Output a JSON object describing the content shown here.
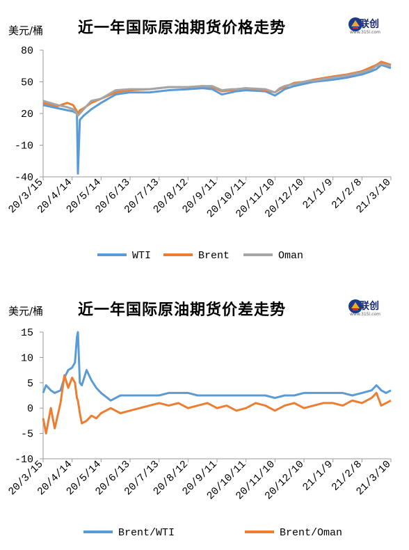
{
  "logo": {
    "name": "金联创",
    "sub": "www.315i.com"
  },
  "colors": {
    "wti": "#5b9bd5",
    "brent": "#ed7d31",
    "oman": "#a5a5a5",
    "axis": "#999999"
  },
  "chart_data": [
    {
      "type": "line",
      "title": "近一年国际原油期货价格走势",
      "unit": "美元/桶",
      "ylim": [
        -40,
        80
      ],
      "yticks": [
        "80",
        "50",
        "20",
        "-10",
        "-40"
      ],
      "ytick_values": [
        80,
        50,
        20,
        -10,
        -40
      ],
      "xtick_labels": [
        "20/3/15",
        "20/4/14",
        "20/5/14",
        "20/6/13",
        "20/7/13",
        "20/8/12",
        "20/9/11",
        "20/10/11",
        "20/11/10",
        "20/12/10",
        "21/1/9",
        "21/2/8",
        "21/3/10"
      ],
      "x_days": [
        0,
        15,
        25,
        31,
        35,
        36,
        38,
        42,
        50,
        60,
        75,
        90,
        110,
        130,
        150,
        165,
        175,
        185,
        195,
        200,
        210,
        230,
        240,
        245,
        250,
        260,
        270,
        275,
        280,
        300,
        315,
        330,
        340,
        345,
        350,
        360
      ],
      "series": [
        {
          "name": "WTI",
          "values": [
            28,
            25,
            23,
            22,
            20,
            -37,
            14,
            18,
            24,
            30,
            38,
            40,
            40,
            42,
            43,
            44,
            43,
            38,
            40,
            41,
            42,
            41,
            37,
            40,
            43,
            46,
            48,
            49,
            50,
            52,
            54,
            57,
            60,
            62,
            66,
            63
          ]
        },
        {
          "name": "Brent",
          "values": [
            30,
            27,
            30,
            28,
            22,
            20,
            23,
            25,
            30,
            34,
            40,
            42,
            43,
            45,
            45,
            46,
            45,
            41,
            42,
            43,
            44,
            42,
            40,
            43,
            45,
            49,
            50,
            51,
            52,
            55,
            57,
            60,
            64,
            66,
            69,
            66
          ]
        },
        {
          "name": "Oman",
          "values": [
            32,
            28,
            26,
            24,
            20,
            18,
            20,
            24,
            32,
            34,
            42,
            43,
            43,
            45,
            45,
            46,
            46,
            42,
            43,
            43,
            44,
            43,
            40,
            44,
            46,
            48,
            50,
            51,
            51,
            54,
            56,
            59,
            62,
            65,
            67,
            65
          ]
        }
      ]
    },
    {
      "type": "line",
      "title": "近一年国际原油期货价差走势",
      "unit": "美元/桶",
      "ylim": [
        -10,
        15
      ],
      "yticks": [
        "15",
        "10",
        "5",
        "0",
        "-5",
        "-10"
      ],
      "ytick_values": [
        15,
        10,
        5,
        0,
        -5,
        -10
      ],
      "xtick_labels": [
        "20/3/15",
        "20/4/14",
        "20/5/14",
        "20/6/13",
        "20/7/13",
        "20/8/12",
        "20/9/11",
        "20/10/11",
        "20/11/10",
        "20/12/10",
        "21/1/9",
        "21/2/8",
        "21/3/10"
      ],
      "x_days": [
        0,
        3,
        8,
        12,
        18,
        22,
        26,
        30,
        33,
        35,
        36,
        38,
        40,
        45,
        50,
        55,
        60,
        70,
        80,
        90,
        100,
        110,
        120,
        130,
        140,
        150,
        160,
        170,
        180,
        190,
        200,
        210,
        220,
        230,
        240,
        250,
        260,
        270,
        280,
        290,
        300,
        310,
        320,
        330,
        340,
        345,
        350,
        355,
        360
      ],
      "series": [
        {
          "name": "Brent/WTI",
          "values": [
            3,
            4.5,
            3.5,
            3,
            3.5,
            6,
            7.5,
            8,
            9,
            14,
            15,
            5,
            4.5,
            7.5,
            5.5,
            4,
            3,
            1.5,
            2.5,
            2.5,
            2.5,
            2.5,
            2.5,
            3,
            3,
            3,
            2.5,
            2.5,
            2.5,
            2.5,
            2.5,
            2.5,
            2.5,
            2.5,
            2,
            2.5,
            2.5,
            3,
            3,
            3,
            3,
            3,
            2.5,
            3,
            3.5,
            4.5,
            3.5,
            3,
            3.5
          ]
        },
        {
          "name": "Brent/Oman",
          "values": [
            -2,
            -5,
            0,
            -4,
            1,
            6.5,
            4,
            6,
            5,
            2,
            1.5,
            -1,
            -3,
            -2.5,
            -1.5,
            -2,
            -1,
            0,
            -1,
            -0.5,
            0,
            0.5,
            1,
            0.5,
            1,
            0,
            0.5,
            1,
            0,
            0.5,
            -0.5,
            0,
            1,
            0.5,
            -0.5,
            0.5,
            1,
            0,
            0.5,
            1,
            1,
            0.5,
            1.5,
            1,
            2,
            3,
            0.5,
            1,
            1.5
          ]
        }
      ]
    }
  ]
}
